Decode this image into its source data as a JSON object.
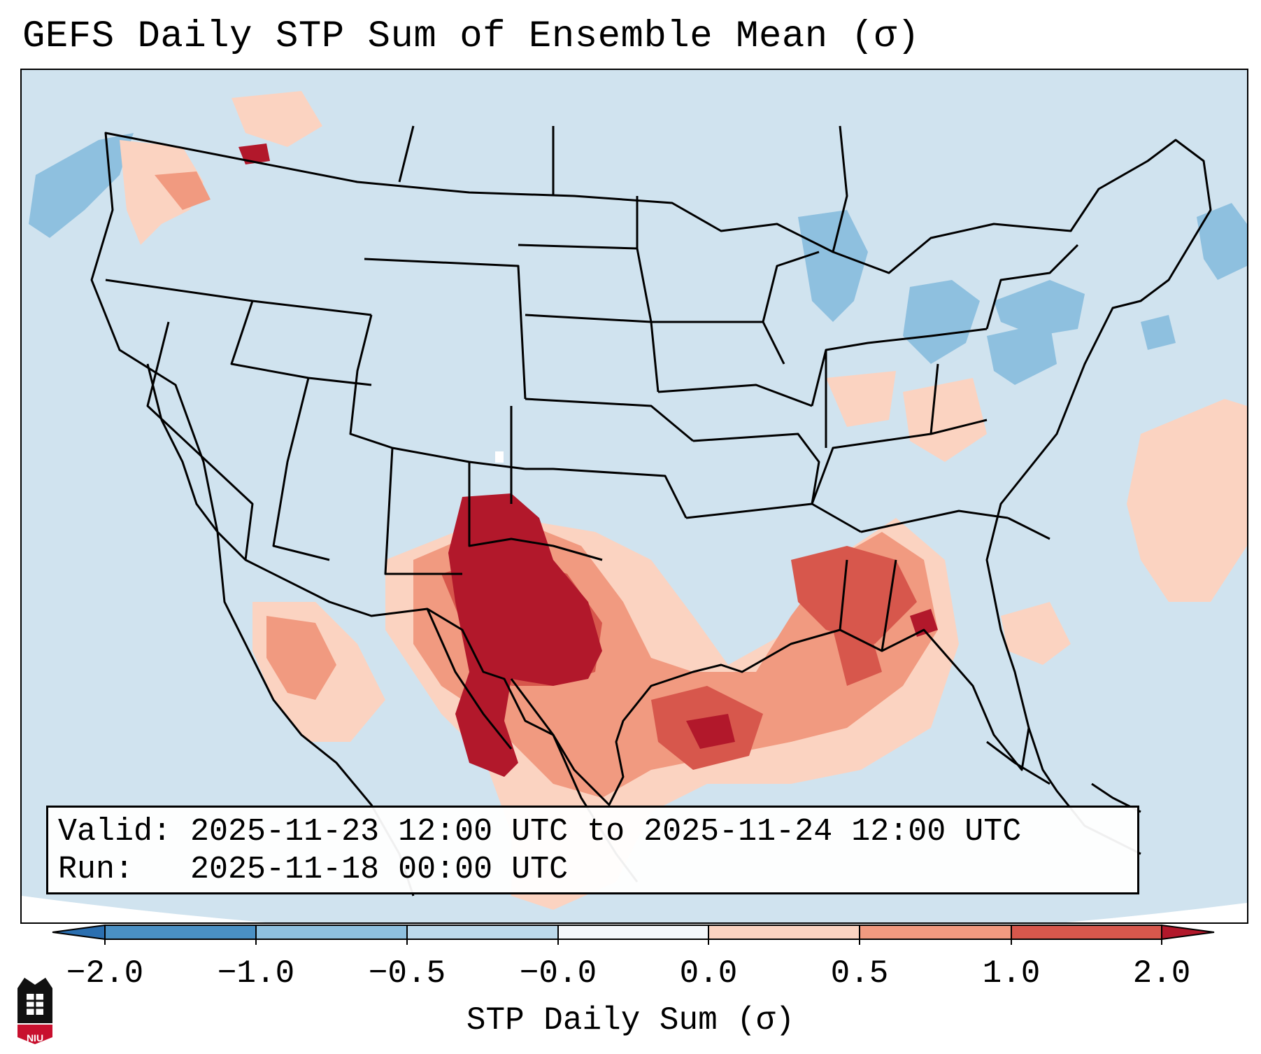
{
  "title": "GEFS Daily STP Sum of Ensemble Mean (σ)",
  "info": {
    "valid_label": "Valid:",
    "valid_value": "2025-11-23 12:00 UTC to 2025-11-24 12:00 UTC",
    "run_label": "Run:",
    "run_value": "2025-11-18 00:00 UTC"
  },
  "colorbar": {
    "label": "STP Daily Sum (σ)",
    "ticks": [
      "−2.0",
      "−1.0",
      "−0.5",
      "−0.0",
      "0.0",
      "0.5",
      "1.0",
      "2.0"
    ],
    "colors": [
      "#4a90c4",
      "#8ec0df",
      "#bcd9eb",
      "#f4f7fb",
      "#fbd3c1",
      "#f19a80",
      "#d7574c"
    ],
    "under_color": "#2b6fb0",
    "over_color": "#b2182b"
  },
  "map": {
    "background": "#d0e3ef",
    "off_projection": "#ffffff"
  },
  "logo": {
    "text": "NIU"
  }
}
